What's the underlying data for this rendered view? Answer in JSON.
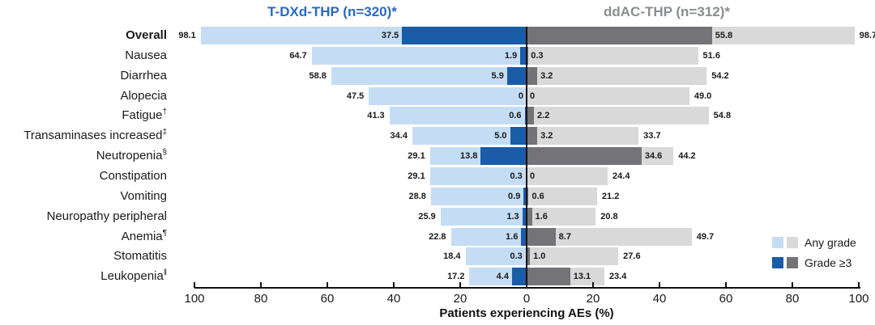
{
  "title_left": "T-DXd-THP (n=320)*",
  "title_right": "ddAC-THP (n=312)*",
  "colors": {
    "left_any": "#C5DDF4",
    "left_grade3": "#1A5CA8",
    "right_any": "#D9D9D9",
    "right_grade3": "#747478",
    "title_left": "#2B6ABF",
    "title_right": "#8A8D90",
    "axis": "#111111"
  },
  "legend": {
    "any_grade_label": "Any grade",
    "grade3_label": "Grade ≥3"
  },
  "axis": {
    "title": "Patients experiencing AEs (%)",
    "tick_labels": [
      "100",
      "80",
      "60",
      "40",
      "20",
      "0",
      "20",
      "40",
      "60",
      "80",
      "100"
    ]
  },
  "chart_data": {
    "type": "bar",
    "subtype": "diverging-tornado",
    "orientation": "horizontal",
    "title_left": "T-DXd-THP (n=320)*",
    "title_right": "ddAC-THP (n=312)*",
    "xlabel": "Patients experiencing AEs (%)",
    "xlim_left": [
      100,
      0
    ],
    "xlim_right": [
      0,
      100
    ],
    "grid": false,
    "legend_position": "right-bottom",
    "legend_entries": [
      "Any grade",
      "Grade ≥3"
    ],
    "categories": [
      "Overall",
      "Nausea",
      "Diarrhea",
      "Alopecia",
      "Fatigue†",
      "Transaminases increased‡",
      "Neutropenia§",
      "Constipation",
      "Vomiting",
      "Neuropathy peripheral",
      "Anemia¶",
      "Stomatitis",
      "Leukopenia‖"
    ],
    "series": [
      {
        "name": "T-DXd-THP Any grade",
        "side": "left",
        "values": [
          98.1,
          64.7,
          58.8,
          47.5,
          41.3,
          34.4,
          29.1,
          29.1,
          28.8,
          25.9,
          22.8,
          18.4,
          17.2
        ]
      },
      {
        "name": "T-DXd-THP Grade ≥3",
        "side": "left",
        "values": [
          37.5,
          1.9,
          5.9,
          0,
          0.6,
          5.0,
          13.8,
          0.3,
          0.9,
          1.3,
          1.6,
          0.3,
          4.4
        ]
      },
      {
        "name": "ddAC-THP Grade ≥3",
        "side": "right",
        "values": [
          55.8,
          0.3,
          3.2,
          0,
          2.2,
          3.2,
          34.6,
          0,
          0.6,
          1.6,
          8.7,
          1.0,
          13.1
        ]
      },
      {
        "name": "ddAC-THP Any grade",
        "side": "right",
        "values": [
          98.7,
          51.6,
          54.2,
          49.0,
          54.8,
          33.7,
          44.2,
          24.4,
          21.2,
          20.8,
          49.7,
          27.6,
          23.4
        ]
      }
    ],
    "rows": [
      {
        "label": "Overall",
        "sup": "",
        "bold": true,
        "left_any": "98.1",
        "left_g3": "37.5",
        "right_g3": "55.8",
        "right_any": "98.7"
      },
      {
        "label": "Nausea",
        "sup": "",
        "bold": false,
        "left_any": "64.7",
        "left_g3": "1.9",
        "right_g3": "0.3",
        "right_any": "51.6"
      },
      {
        "label": "Diarrhea",
        "sup": "",
        "bold": false,
        "left_any": "58.8",
        "left_g3": "5.9",
        "right_g3": "3.2",
        "right_any": "54.2"
      },
      {
        "label": "Alopecia",
        "sup": "",
        "bold": false,
        "left_any": "47.5",
        "left_g3": "0",
        "right_g3": "0",
        "right_any": "49.0"
      },
      {
        "label": "Fatigue",
        "sup": "†",
        "bold": false,
        "left_any": "41.3",
        "left_g3": "0.6",
        "right_g3": "2.2",
        "right_any": "54.8"
      },
      {
        "label": "Transaminases increased",
        "sup": "‡",
        "bold": false,
        "left_any": "34.4",
        "left_g3": "5.0",
        "right_g3": "3.2",
        "right_any": "33.7"
      },
      {
        "label": "Neutropenia",
        "sup": "§",
        "bold": false,
        "left_any": "29.1",
        "left_g3": "13.8",
        "right_g3": "34.6",
        "right_any": "44.2"
      },
      {
        "label": "Constipation",
        "sup": "",
        "bold": false,
        "left_any": "29.1",
        "left_g3": "0.3",
        "right_g3": "0",
        "right_any": "24.4"
      },
      {
        "label": "Vomiting",
        "sup": "",
        "bold": false,
        "left_any": "28.8",
        "left_g3": "0.9",
        "right_g3": "0.6",
        "right_any": "21.2"
      },
      {
        "label": "Neuropathy peripheral",
        "sup": "",
        "bold": false,
        "left_any": "25.9",
        "left_g3": "1.3",
        "right_g3": "1.6",
        "right_any": "20.8"
      },
      {
        "label": "Anemia",
        "sup": "¶",
        "bold": false,
        "left_any": "22.8",
        "left_g3": "1.6",
        "right_g3": "8.7",
        "right_any": "49.7"
      },
      {
        "label": "Stomatitis",
        "sup": "",
        "bold": false,
        "left_any": "18.4",
        "left_g3": "0.3",
        "right_g3": "1.0",
        "right_any": "27.6"
      },
      {
        "label": "Leukopenia",
        "sup": "‖",
        "bold": false,
        "left_any": "17.2",
        "left_g3": "4.4",
        "right_g3": "13.1",
        "right_any": "23.4"
      }
    ]
  }
}
